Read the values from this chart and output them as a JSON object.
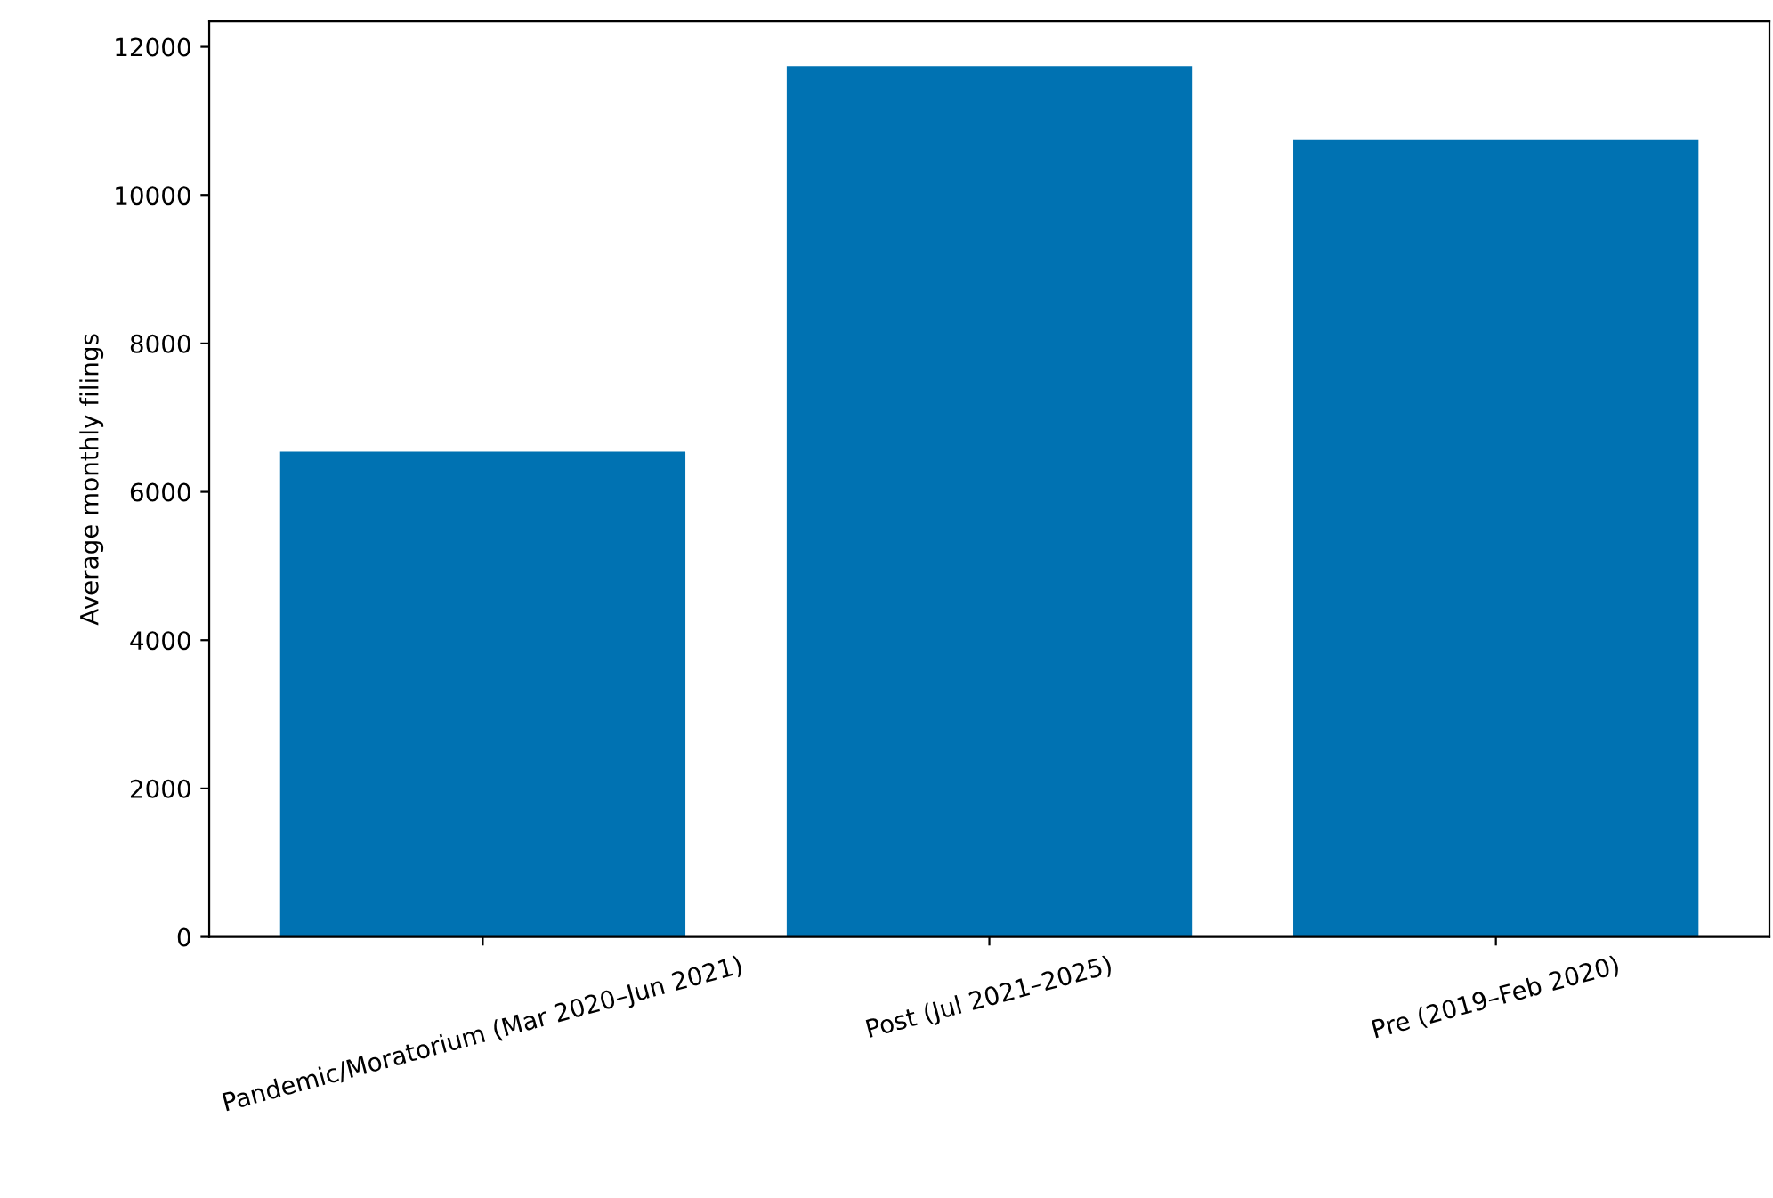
{
  "chart_data": {
    "type": "bar",
    "ylabel": "Average monthly filings",
    "categories": [
      "Pandemic/Moratorium (Mar 2020–Jun 2021)",
      "Post (Jul 2021–2025)",
      "Pre (2019–Feb 2020)"
    ],
    "values": [
      6540,
      11740,
      10750
    ],
    "color": "#0072b2",
    "ylim": [
      0,
      12340
    ],
    "yticks": [
      0,
      2000,
      4000,
      6000,
      8000,
      10000,
      12000
    ],
    "grid": false
  }
}
